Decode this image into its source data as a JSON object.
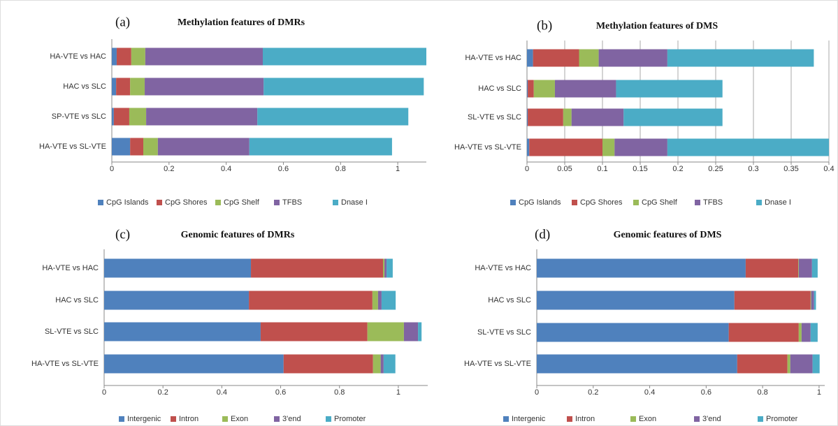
{
  "chart_data": [
    {
      "type": "stacked-bar",
      "label": "(a)",
      "title": "Methylation features of DMRs",
      "categories": [
        "HA-VTE vs HAC",
        "HAC vs SLC",
        "SP-VTE vs SLC",
        "HA-VTE vs SL-VTE"
      ],
      "series": [
        {
          "name": "CpG Islands",
          "color": "#4f81bd",
          "values": [
            0.017,
            0.015,
            0.007,
            0.064
          ]
        },
        {
          "name": "CpG Shores",
          "color": "#c0504d",
          "values": [
            0.051,
            0.049,
            0.054,
            0.046
          ]
        },
        {
          "name": "CpG Shelf",
          "color": "#9bbb59",
          "values": [
            0.049,
            0.051,
            0.059,
            0.051
          ]
        },
        {
          "name": "TFBS",
          "color": "#8064a2",
          "values": [
            0.411,
            0.416,
            0.389,
            0.32
          ]
        },
        {
          "name": "Dnase I",
          "color": "#4bacc6",
          "values": [
            0.572,
            0.56,
            0.528,
            0.499
          ]
        }
      ],
      "xlim": [
        0,
        1.1
      ],
      "xticks": [
        0,
        0.2,
        0.4,
        0.6,
        0.8,
        1
      ],
      "grid": false,
      "legend": "bottom"
    },
    {
      "type": "stacked-bar",
      "label": "(b)",
      "title": "Methylation features of DMS",
      "categories": [
        "HA-VTE vs HAC",
        "HAC vs SLC",
        "SL-VTE vs SLC",
        "HA-VTE vs SL-VTE"
      ],
      "series": [
        {
          "name": "CpG Islands",
          "color": "#4f81bd",
          "values": [
            0.008,
            0.001,
            0.001,
            0.003
          ]
        },
        {
          "name": "CpG Shores",
          "color": "#c0504d",
          "values": [
            0.061,
            0.008,
            0.047,
            0.097
          ]
        },
        {
          "name": "CpG Shelf",
          "color": "#9bbb59",
          "values": [
            0.026,
            0.028,
            0.011,
            0.016
          ]
        },
        {
          "name": "TFBS",
          "color": "#8064a2",
          "values": [
            0.091,
            0.081,
            0.069,
            0.07
          ]
        },
        {
          "name": "Dnase I",
          "color": "#4bacc6",
          "values": [
            0.194,
            0.141,
            0.131,
            0.214
          ]
        }
      ],
      "xlim": [
        0,
        0.4
      ],
      "xticks": [
        0,
        0.05,
        0.1,
        0.15,
        0.2,
        0.25,
        0.3,
        0.35,
        0.4
      ],
      "grid": true,
      "legend": "bottom"
    },
    {
      "type": "stacked-bar",
      "label": "(c)",
      "title": "Genomic features of DMRs",
      "categories": [
        "HA-VTE vs HAC",
        "HAC vs SLC",
        "SL-VTE vs SLC",
        "HA-VTE vs SL-VTE"
      ],
      "series": [
        {
          "name": "Intergenic",
          "color": "#4f81bd",
          "values": [
            0.499,
            0.492,
            0.532,
            0.61
          ]
        },
        {
          "name": "Intron",
          "color": "#c0504d",
          "values": [
            0.449,
            0.42,
            0.363,
            0.304
          ]
        },
        {
          "name": "Exon",
          "color": "#9bbb59",
          "values": [
            0.005,
            0.019,
            0.124,
            0.026
          ]
        },
        {
          "name": "3'end",
          "color": "#8064a2",
          "values": [
            0.007,
            0.012,
            0.048,
            0.01
          ]
        },
        {
          "name": "Promoter",
          "color": "#4bacc6",
          "values": [
            0.021,
            0.048,
            0.012,
            0.04
          ]
        }
      ],
      "xlim": [
        0,
        1.1
      ],
      "xticks": [
        0,
        0.2,
        0.4,
        0.6,
        0.8,
        1
      ],
      "grid": false,
      "legend": "bottom"
    },
    {
      "type": "stacked-bar",
      "label": "(d)",
      "title": "Genomic features of DMS",
      "categories": [
        "HA-VTE vs HAC",
        "HAC vs SLC",
        "SL-VTE vs SLC",
        "HA-VTE vs SL-VTE"
      ],
      "series": [
        {
          "name": "Intergenic",
          "color": "#4f81bd",
          "values": [
            0.74,
            0.7,
            0.68,
            0.71
          ]
        },
        {
          "name": "Intron",
          "color": "#c0504d",
          "values": [
            0.186,
            0.27,
            0.248,
            0.178
          ]
        },
        {
          "name": "Exon",
          "color": "#9bbb59",
          "values": [
            0.002,
            0.002,
            0.01,
            0.01
          ]
        },
        {
          "name": "3'end",
          "color": "#8064a2",
          "values": [
            0.047,
            0.01,
            0.032,
            0.079
          ]
        },
        {
          "name": "Promoter",
          "color": "#4bacc6",
          "values": [
            0.02,
            0.007,
            0.025,
            0.025
          ]
        }
      ],
      "xlim": [
        0,
        1.02
      ],
      "xticks": [
        0,
        0.2,
        0.4,
        0.6,
        0.8,
        1
      ],
      "grid": false,
      "legend": "bottom"
    }
  ]
}
